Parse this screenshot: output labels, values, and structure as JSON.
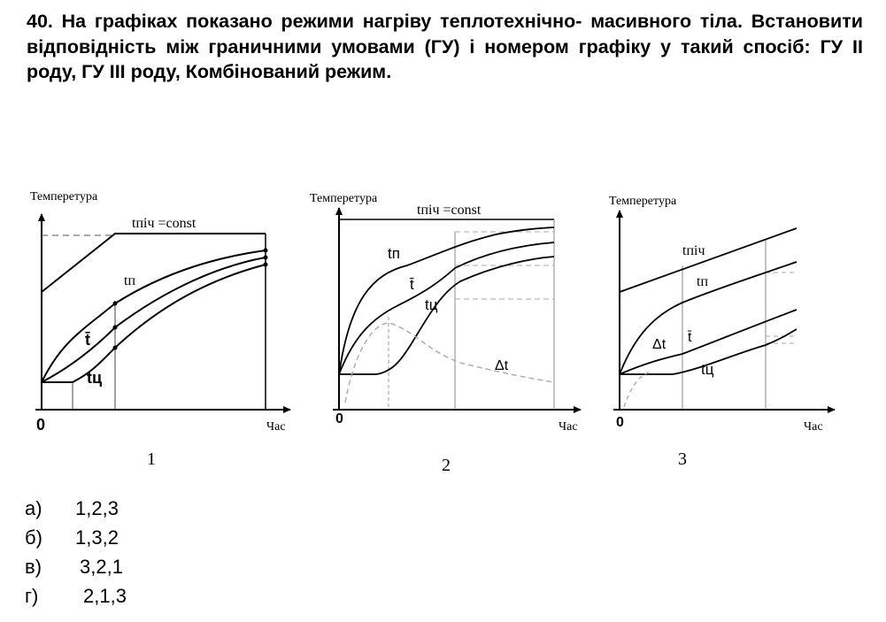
{
  "question": {
    "text": "40. На графіках показано режими нагріву теплотехнічно- масивного тіла. Встановити  відповідність між граничними умовами (ГУ) і номером графіку у такий спосіб:  ГУ ІІ роду, ГУ ІІІ роду, Комбінований режим."
  },
  "graphs": [
    {
      "number": "1",
      "y_axis_label": "Темперетура",
      "x_axis_label": "Час",
      "origin_label": "0",
      "furnace_label": "tпіч =const",
      "surface_label": "tп",
      "mean_label": "t̄",
      "center_label": "tц"
    },
    {
      "number": "2",
      "y_axis_label": "Темперетура",
      "x_axis_label": "Час",
      "origin_label": "0",
      "furnace_label": "tпіч =const",
      "surface_label": "tп",
      "mean_label": "t̄",
      "center_label": "tц",
      "delta_label": "Δt"
    },
    {
      "number": "3",
      "y_axis_label": "Темперетура",
      "x_axis_label": "Час",
      "origin_label": "0",
      "furnace_label": "tпіч",
      "surface_label": "tп",
      "mean_label": "t̄",
      "center_label": "tц",
      "delta_label": "Δt"
    }
  ],
  "answers": [
    {
      "letter": "а)",
      "value": "1,2,3"
    },
    {
      "letter": "б)",
      "value": "1,3,2"
    },
    {
      "letter": "в)",
      "value": "3,2,1"
    },
    {
      "letter": "г)",
      "value": "2,1,3"
    }
  ]
}
